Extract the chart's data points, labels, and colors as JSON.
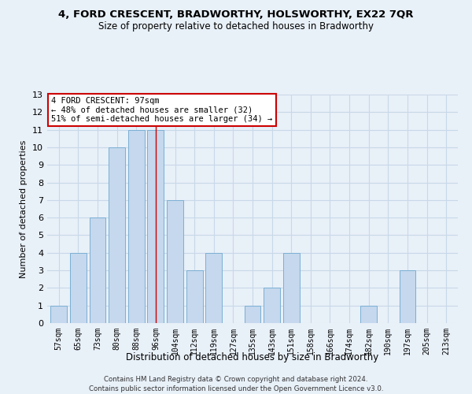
{
  "title": "4, FORD CRESCENT, BRADWORTHY, HOLSWORTHY, EX22 7QR",
  "subtitle": "Size of property relative to detached houses in Bradworthy",
  "xlabel": "Distribution of detached houses by size in Bradworthy",
  "ylabel": "Number of detached properties",
  "footer_line1": "Contains HM Land Registry data © Crown copyright and database right 2024.",
  "footer_line2": "Contains public sector information licensed under the Open Government Licence v3.0.",
  "bin_labels": [
    "57sqm",
    "65sqm",
    "73sqm",
    "80sqm",
    "88sqm",
    "96sqm",
    "104sqm",
    "112sqm",
    "119sqm",
    "127sqm",
    "135sqm",
    "143sqm",
    "151sqm",
    "158sqm",
    "166sqm",
    "174sqm",
    "182sqm",
    "190sqm",
    "197sqm",
    "205sqm",
    "213sqm"
  ],
  "values": [
    1,
    4,
    6,
    10,
    11,
    11,
    7,
    3,
    4,
    0,
    1,
    2,
    4,
    0,
    0,
    0,
    1,
    0,
    3,
    0,
    0
  ],
  "highlight_index": 5,
  "bar_color": "#c5d8ed",
  "bar_edge_color": "#7aafd4",
  "annotation_line1": "4 FORD CRESCENT: 97sqm",
  "annotation_line2": "← 48% of detached houses are smaller (32)",
  "annotation_line3": "51% of semi-detached houses are larger (34) →",
  "annotation_box_color": "#ffffff",
  "annotation_box_edge": "#cc0000",
  "highlight_line_color": "#cc0000",
  "ylim": [
    0,
    13
  ],
  "yticks": [
    0,
    1,
    2,
    3,
    4,
    5,
    6,
    7,
    8,
    9,
    10,
    11,
    12,
    13
  ],
  "grid_color": "#c8d8e8",
  "bg_color": "#e8f0f8",
  "title_fontsize": 9.5,
  "subtitle_fontsize": 8.5,
  "ylabel_fontsize": 8,
  "xlabel_fontsize": 8.5
}
